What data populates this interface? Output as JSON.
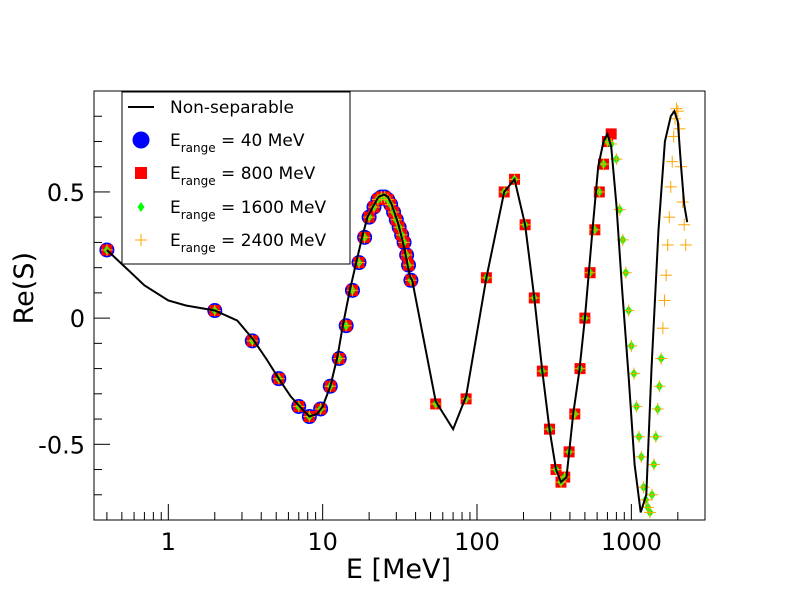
{
  "chart_data": {
    "type": "scatter",
    "title": "",
    "xlabel": "E [MeV]",
    "ylabel": "Re(S)",
    "xscale": "log",
    "xlim": [
      0.33,
      3000
    ],
    "ylim": [
      -0.8,
      0.9
    ],
    "x_ticks": [
      1,
      10,
      100,
      1000
    ],
    "x_tick_labels": [
      "1",
      "10",
      "100",
      "1000"
    ],
    "y_ticks": [
      -0.5,
      0,
      0.5
    ],
    "y_tick_labels": [
      "-0.5",
      "0",
      "0.5"
    ],
    "legend_position": "top-left",
    "legend": [
      {
        "label": "Non-separable",
        "base": "",
        "sub": "",
        "rest": "",
        "color": "#000000",
        "marker": "line"
      },
      {
        "label": "E_range = 40 MeV",
        "base": "E",
        "sub": "range",
        "rest": " = 40 MeV",
        "color": "#0000ff",
        "marker": "circle"
      },
      {
        "label": "E_range = 800 MeV",
        "base": "E",
        "sub": "range",
        "rest": " = 800 MeV",
        "color": "#ff0000",
        "marker": "square"
      },
      {
        "label": "E_range = 1600 MeV",
        "base": "E",
        "sub": "range",
        "rest": " = 1600 MeV",
        "color": "#00ff00",
        "marker": "diamond"
      },
      {
        "label": "E_range = 2400 MeV",
        "base": "E",
        "sub": "range",
        "rest": " = 2400 MeV",
        "color": "#ffa500",
        "marker": "cross"
      }
    ],
    "series": [
      {
        "name": "Non-separable",
        "style": "line",
        "color": "#000000",
        "x": [
          0.4,
          0.7,
          1.0,
          1.3,
          2.0,
          2.8,
          3.5,
          4.3,
          5.2,
          6.2,
          7.1,
          8.2,
          9.2,
          10.0,
          11.2,
          12.5,
          13.5,
          15.0,
          16.5,
          18.0,
          19.5,
          21.5,
          23.0,
          25.0,
          26.5,
          28.0,
          29.5,
          31.0,
          32.5,
          34.0,
          35.5,
          37.0,
          38.0,
          54,
          70,
          85,
          115,
          150,
          175,
          205,
          235,
          265,
          295,
          325,
          350,
          380,
          420,
          460,
          500,
          560,
          610,
          660,
          700,
          740,
          800,
          870,
          960,
          1050,
          1150,
          1250,
          1350,
          1500,
          1650,
          1800,
          1900,
          2000,
          2100,
          2200,
          2300
        ],
        "y": [
          0.27,
          0.13,
          0.07,
          0.05,
          0.03,
          -0.01,
          -0.08,
          -0.16,
          -0.24,
          -0.31,
          -0.35,
          -0.39,
          -0.38,
          -0.35,
          -0.27,
          -0.15,
          -0.03,
          0.11,
          0.22,
          0.32,
          0.4,
          0.45,
          0.48,
          0.49,
          0.48,
          0.45,
          0.41,
          0.37,
          0.32,
          0.27,
          0.21,
          0.16,
          0.15,
          -0.33,
          -0.44,
          -0.31,
          0.16,
          0.5,
          0.55,
          0.37,
          0.08,
          -0.21,
          -0.44,
          -0.6,
          -0.65,
          -0.63,
          -0.38,
          -0.21,
          0.0,
          0.35,
          0.6,
          0.7,
          0.73,
          0.68,
          0.45,
          0.12,
          -0.23,
          -0.58,
          -0.77,
          -0.7,
          -0.2,
          0.35,
          0.7,
          0.8,
          0.82,
          0.78,
          0.6,
          0.45,
          0.38
        ]
      },
      {
        "name": "E_range = 40 MeV",
        "style": "circle",
        "color": "#0000ff",
        "x": [
          0.4,
          2.0,
          3.5,
          5.2,
          7.0,
          8.2,
          9.7,
          11.2,
          12.8,
          14.2,
          15.6,
          17.2,
          18.7,
          20.0,
          21.5,
          22.8,
          24.0,
          25.2,
          26.4,
          27.6,
          28.8,
          30.0,
          31.3,
          32.5,
          33.7,
          35.0,
          36.0,
          37.3
        ],
        "y": [
          0.27,
          0.03,
          -0.09,
          -0.24,
          -0.35,
          -0.39,
          -0.36,
          -0.27,
          -0.16,
          -0.03,
          0.11,
          0.22,
          0.32,
          0.4,
          0.44,
          0.47,
          0.48,
          0.48,
          0.47,
          0.45,
          0.42,
          0.39,
          0.36,
          0.33,
          0.3,
          0.25,
          0.21,
          0.15
        ]
      },
      {
        "name": "E_range = 800 MeV",
        "style": "square",
        "color": "#ff0000",
        "x": [
          0.4,
          2.0,
          3.5,
          5.2,
          7.0,
          8.2,
          9.7,
          11.2,
          12.8,
          14.2,
          15.6,
          17.2,
          18.7,
          20.0,
          21.5,
          22.8,
          24.0,
          25.2,
          26.4,
          27.6,
          28.8,
          30.0,
          31.3,
          32.5,
          33.7,
          35.0,
          36.0,
          37.3,
          54,
          85,
          115,
          150,
          175,
          205,
          235,
          265,
          295,
          325,
          350,
          370,
          395,
          430,
          465,
          500,
          540,
          580,
          620,
          660,
          700,
          740
        ],
        "y": [
          0.27,
          0.03,
          -0.09,
          -0.24,
          -0.35,
          -0.39,
          -0.36,
          -0.27,
          -0.16,
          -0.03,
          0.11,
          0.22,
          0.32,
          0.4,
          0.44,
          0.47,
          0.48,
          0.48,
          0.47,
          0.45,
          0.42,
          0.39,
          0.36,
          0.33,
          0.3,
          0.25,
          0.21,
          0.15,
          -0.34,
          -0.32,
          0.16,
          0.5,
          0.55,
          0.37,
          0.08,
          -0.21,
          -0.44,
          -0.6,
          -0.65,
          -0.63,
          -0.53,
          -0.38,
          -0.2,
          0.0,
          0.18,
          0.35,
          0.5,
          0.61,
          0.7,
          0.73
        ]
      },
      {
        "name": "E_range = 1600 MeV",
        "style": "diamond",
        "color": "#00ff00",
        "x": [
          0.4,
          2.0,
          3.5,
          5.2,
          7.0,
          8.2,
          9.7,
          11.2,
          12.8,
          14.2,
          15.6,
          17.2,
          18.7,
          20.0,
          21.5,
          22.8,
          24.0,
          25.2,
          26.4,
          27.6,
          28.8,
          30.0,
          31.3,
          32.5,
          33.7,
          35.0,
          36.0,
          37.3,
          54,
          85,
          115,
          150,
          175,
          205,
          235,
          265,
          295,
          325,
          350,
          370,
          395,
          430,
          465,
          500,
          540,
          580,
          620,
          660,
          700,
          740,
          800,
          840,
          880,
          920,
          960,
          1000,
          1040,
          1080,
          1120,
          1160,
          1200,
          1240,
          1280,
          1320,
          1360,
          1400,
          1440,
          1480,
          1520,
          1560
        ],
        "y": [
          0.27,
          0.03,
          -0.09,
          -0.24,
          -0.35,
          -0.39,
          -0.36,
          -0.27,
          -0.16,
          -0.03,
          0.11,
          0.22,
          0.32,
          0.4,
          0.44,
          0.47,
          0.48,
          0.48,
          0.47,
          0.45,
          0.42,
          0.39,
          0.36,
          0.33,
          0.3,
          0.25,
          0.21,
          0.15,
          -0.34,
          -0.32,
          0.16,
          0.5,
          0.55,
          0.37,
          0.08,
          -0.21,
          -0.44,
          -0.6,
          -0.65,
          -0.63,
          -0.53,
          -0.38,
          -0.2,
          0.0,
          0.18,
          0.35,
          0.5,
          0.61,
          0.7,
          0.69,
          0.63,
          0.43,
          0.31,
          0.18,
          0.03,
          -0.11,
          -0.22,
          -0.35,
          -0.47,
          -0.55,
          -0.67,
          -0.72,
          -0.75,
          -0.77,
          -0.7,
          -0.58,
          -0.47,
          -0.36,
          -0.27,
          -0.16
        ]
      },
      {
        "name": "E_range = 2400 MeV",
        "style": "cross",
        "color": "#ffa500",
        "x": [
          0.4,
          2.0,
          3.5,
          5.2,
          7.0,
          8.2,
          9.7,
          11.2,
          12.8,
          14.2,
          15.6,
          17.2,
          18.7,
          20.0,
          21.5,
          22.8,
          24.0,
          25.2,
          26.4,
          27.6,
          28.8,
          30.0,
          31.3,
          32.5,
          33.7,
          35.0,
          36.0,
          37.3,
          54,
          85,
          115,
          150,
          175,
          205,
          235,
          265,
          295,
          325,
          350,
          370,
          395,
          430,
          465,
          500,
          540,
          580,
          620,
          660,
          700,
          740,
          800,
          840,
          880,
          920,
          960,
          1000,
          1040,
          1080,
          1120,
          1160,
          1200,
          1240,
          1280,
          1320,
          1360,
          1400,
          1440,
          1480,
          1520,
          1560,
          1600,
          1640,
          1680,
          1720,
          1760,
          1800,
          1840,
          1880,
          1920,
          1960,
          2000,
          2050,
          2100,
          2150,
          2200,
          2250
        ],
        "y": [
          0.27,
          0.03,
          -0.09,
          -0.24,
          -0.35,
          -0.39,
          -0.36,
          -0.27,
          -0.16,
          -0.03,
          0.11,
          0.22,
          0.32,
          0.4,
          0.44,
          0.47,
          0.48,
          0.48,
          0.47,
          0.45,
          0.42,
          0.39,
          0.36,
          0.33,
          0.3,
          0.25,
          0.21,
          0.15,
          -0.34,
          -0.32,
          0.16,
          0.5,
          0.55,
          0.37,
          0.08,
          -0.21,
          -0.44,
          -0.6,
          -0.65,
          -0.63,
          -0.53,
          -0.38,
          -0.2,
          0.0,
          0.18,
          0.35,
          0.5,
          0.61,
          0.7,
          0.69,
          0.63,
          0.43,
          0.31,
          0.18,
          0.03,
          -0.11,
          -0.22,
          -0.35,
          -0.47,
          -0.55,
          -0.67,
          -0.72,
          -0.75,
          -0.77,
          -0.7,
          -0.58,
          -0.47,
          -0.36,
          -0.27,
          -0.16,
          -0.04,
          0.07,
          0.17,
          0.29,
          0.4,
          0.52,
          0.62,
          0.72,
          0.79,
          0.83,
          0.82,
          0.75,
          0.6,
          0.46,
          0.37,
          0.29
        ]
      }
    ]
  }
}
